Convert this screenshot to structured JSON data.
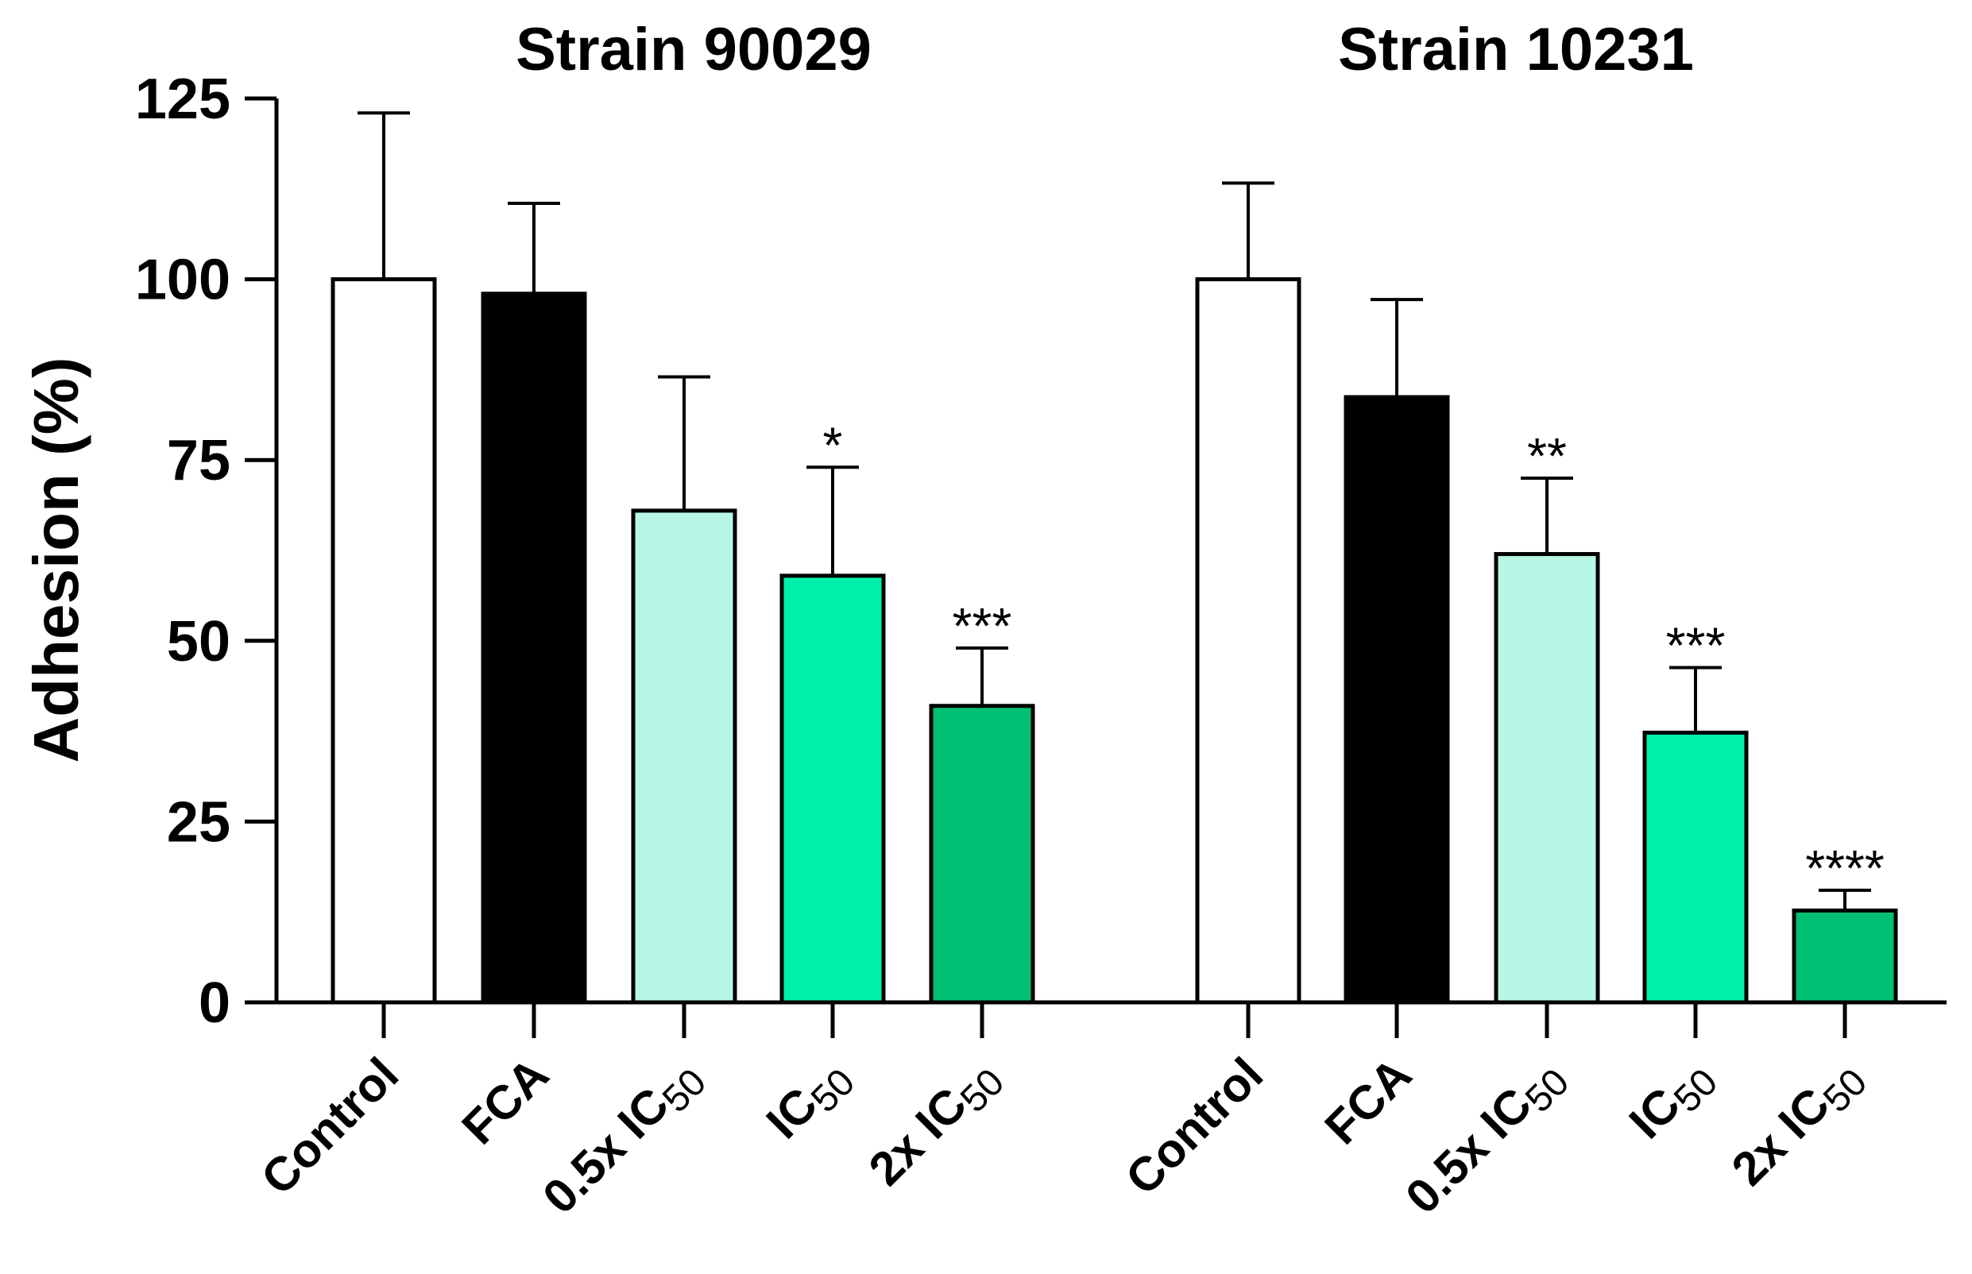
{
  "chart_data": {
    "type": "bar",
    "title": "",
    "xlabel": "",
    "ylabel": "Adhesion (%)",
    "ylim": [
      0,
      125
    ],
    "yticks": [
      0,
      25,
      50,
      75,
      100,
      125
    ],
    "grid": false,
    "colors": {
      "Control": "#ffffff",
      "FCA": "#000000",
      "0.5x IC50": "#b8f7e6",
      "IC50": "#00f0ac",
      "2x IC50": "#00bf72",
      "outline": "#000000"
    },
    "groups": [
      {
        "name": "Strain 90029",
        "bars": [
          {
            "category": "Control",
            "label_main": "Control",
            "label_sub": "",
            "value": 100,
            "error": 23,
            "significance": ""
          },
          {
            "category": "FCA",
            "label_main": "FCA",
            "label_sub": "",
            "value": 98,
            "error": 12.5,
            "significance": ""
          },
          {
            "category": "0.5x IC50",
            "label_main": "0.5x IC",
            "label_sub": "50",
            "value": 68,
            "error": 18.5,
            "significance": ""
          },
          {
            "category": "IC50",
            "label_main": "IC",
            "label_sub": "50",
            "value": 59,
            "error": 15,
            "significance": "*"
          },
          {
            "category": "2x IC50",
            "label_main": "2x IC",
            "label_sub": "50",
            "value": 41,
            "error": 8,
            "significance": "***"
          }
        ]
      },
      {
        "name": "Strain 10231",
        "bars": [
          {
            "category": "Control",
            "label_main": "Control",
            "label_sub": "",
            "value": 100,
            "error": 13.3,
            "significance": ""
          },
          {
            "category": "FCA",
            "label_main": "FCA",
            "label_sub": "",
            "value": 83.7,
            "error": 13.5,
            "significance": ""
          },
          {
            "category": "0.5x IC50",
            "label_main": "0.5x IC",
            "label_sub": "50",
            "value": 62,
            "error": 10.5,
            "significance": "**"
          },
          {
            "category": "IC50",
            "label_main": "IC",
            "label_sub": "50",
            "value": 37.3,
            "error": 9,
            "significance": "***"
          },
          {
            "category": "2x IC50",
            "label_main": "2x IC",
            "label_sub": "50",
            "value": 12.7,
            "error": 2.8,
            "significance": "****"
          }
        ]
      }
    ]
  }
}
